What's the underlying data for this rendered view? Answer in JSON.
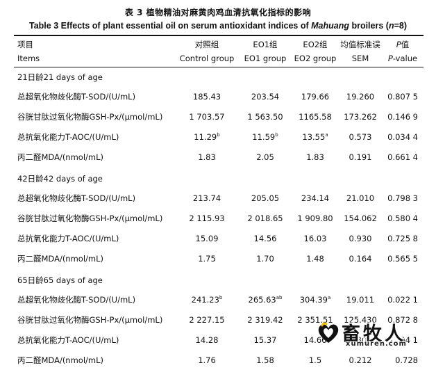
{
  "title_cn": "表 3 植物精油对麻黄肉鸡血清抗氧化指标的影响",
  "title_en_prefix": "Table 3 Effects of plant essential oil on serum antioxidant indices of ",
  "title_en_italic": "Mahuang",
  "title_en_suffix": " broilers (",
  "title_en_n": "n",
  "title_en_end": "=8)",
  "header": {
    "item_cn": "项目",
    "item_en": "Items",
    "control_cn": "对照组",
    "control_en": "Control group",
    "eo1_cn": "EO1组",
    "eo1_en": "EO1 group",
    "eo2_cn": "EO2组",
    "eo2_en": "EO2 group",
    "sem_cn": "均值标准误",
    "sem_en": "SEM",
    "p_cn_italic": "P",
    "p_cn_rest": "值",
    "p_en_italic": "P",
    "p_en_rest": "-value"
  },
  "sections": [
    {
      "label": "21日龄21 days of age",
      "rows": [
        {
          "item": "总超氧化物歧化酶T-SOD/(U/mL)",
          "control": "185.43",
          "control_sup": "",
          "eo1": "203.54",
          "eo1_sup": "",
          "eo2": "179.66",
          "eo2_sup": "",
          "sem": "19.260",
          "p": "0.807 5"
        },
        {
          "item": "谷胱甘肽过氧化物酶GSH-Px/(μmol/mL)",
          "control": "1 703.57",
          "control_sup": "",
          "eo1": "1 563.50",
          "eo1_sup": "",
          "eo2": "1165.58",
          "eo2_sup": "",
          "sem": "173.262",
          "p": "0.146 9"
        },
        {
          "item": "总抗氧化能力T-AOC/(U/mL)",
          "control": "11.29",
          "control_sup": "b",
          "eo1": "11.59",
          "eo1_sup": "b",
          "eo2": "13.55",
          "eo2_sup": "a",
          "sem": "0.573",
          "p": "0.034 4"
        },
        {
          "item": "丙二醛MDA/(nmol/mL)",
          "control": "1.83",
          "control_sup": "",
          "eo1": "2.05",
          "eo1_sup": "",
          "eo2": "1.83",
          "eo2_sup": "",
          "sem": "0.191",
          "p": "0.661 4"
        }
      ]
    },
    {
      "label": "42日龄42 days of age",
      "rows": [
        {
          "item": "总超氧化物歧化酶T-SOD/(U/mL)",
          "control": "213.74",
          "control_sup": "",
          "eo1": "205.05",
          "eo1_sup": "",
          "eo2": "234.14",
          "eo2_sup": "",
          "sem": "21.010",
          "p": "0.798 3"
        },
        {
          "item": "谷胱甘肽过氧化物酶GSH-Px/(μmol/mL)",
          "control": "2 115.93",
          "control_sup": "",
          "eo1": "2 018.65",
          "eo1_sup": "",
          "eo2": "1 909.80",
          "eo2_sup": "",
          "sem": "154.062",
          "p": "0.580 4"
        },
        {
          "item": "总抗氧化能力T-AOC/(U/mL)",
          "control": "15.09",
          "control_sup": "",
          "eo1": "14.56",
          "eo1_sup": "",
          "eo2": "16.03",
          "eo2_sup": "",
          "sem": "0.930",
          "p": "0.725 8"
        },
        {
          "item": "丙二醛MDA/(nmol/mL)",
          "control": "1.75",
          "control_sup": "",
          "eo1": "1.70",
          "eo1_sup": "",
          "eo2": "1.48",
          "eo2_sup": "",
          "sem": "0.164",
          "p": "0.565 5"
        }
      ]
    },
    {
      "label": "65日龄65 days of age",
      "rows": [
        {
          "item": "总超氧化物歧化酶T-SOD/(U/mL)",
          "control": "241.23",
          "control_sup": "b",
          "eo1": "265.63",
          "eo1_sup": "ab",
          "eo2": "304.39",
          "eo2_sup": "a",
          "sem": "19.011",
          "p": "0.022 1"
        },
        {
          "item": "谷胱甘肽过氧化物酶GSH-Px/(μmol/mL)",
          "control": "2 227.15",
          "control_sup": "",
          "eo1": "2 319.42",
          "eo1_sup": "",
          "eo2": "2 351.51",
          "eo2_sup": "",
          "sem": "125.430",
          "p": "0.872 8"
        },
        {
          "item": "总抗氧化能力T-AOC/(U/mL)",
          "control": "14.28",
          "control_sup": "",
          "eo1": "15.37",
          "eo1_sup": "",
          "eo2": "14.66",
          "eo2_sup": "",
          "sem": "0.801",
          "p": "0.794 1"
        },
        {
          "item": "丙二醛MDA/(nmol/mL)",
          "control": "1.76",
          "control_sup": "",
          "eo1": "1.58",
          "eo1_sup": "",
          "eo2": "1.5",
          "eo2_sup": "",
          "sem": "0.212",
          "p": "0.728"
        }
      ]
    }
  ],
  "watermark": {
    "text_cn": "畜牧人",
    "text_en": "xumuren.com",
    "icon": "heart-logo-icon"
  }
}
